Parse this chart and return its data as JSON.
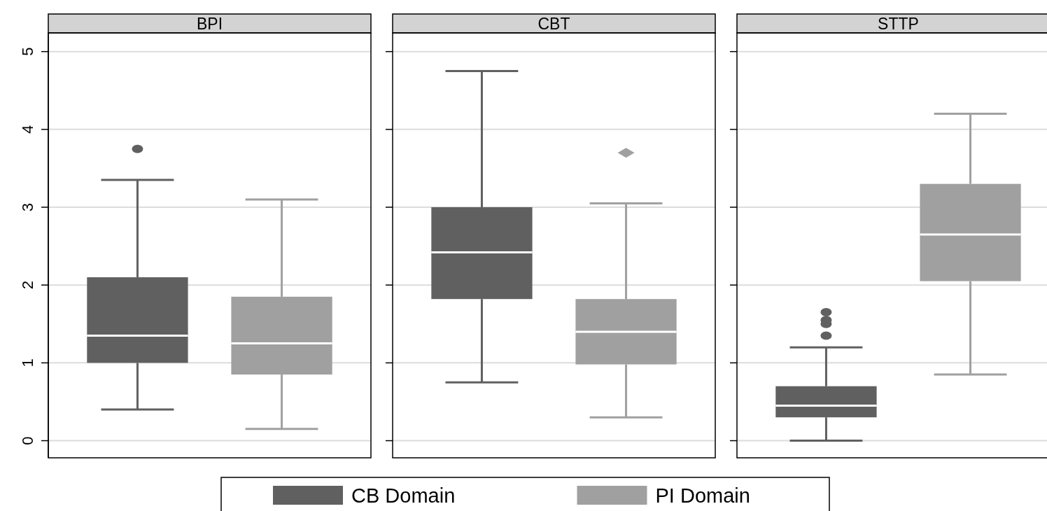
{
  "chart_data": {
    "type": "box",
    "categories": [
      "BPI",
      "CBT",
      "STTP"
    ],
    "ylim": [
      -0.22,
      5.24
    ],
    "yticks": [
      0,
      1,
      2,
      3,
      4,
      5
    ],
    "grid": "y",
    "legend": "bottom",
    "series": [
      {
        "name": "CB Domain",
        "color": "#606060",
        "marker": "circle",
        "boxes": [
          {
            "low": 0.4,
            "q1": 1.0,
            "median": 1.35,
            "q3": 2.1,
            "high": 3.35,
            "outliers": [
              3.75
            ]
          },
          {
            "low": 0.75,
            "q1": 1.82,
            "median": 2.42,
            "q3": 3.0,
            "high": 4.75
          },
          {
            "low": 0.0,
            "q1": 0.3,
            "median": 0.45,
            "q3": 0.7,
            "high": 1.2,
            "outliers": [
              1.35,
              1.5,
              1.55,
              1.65
            ]
          }
        ]
      },
      {
        "name": "PI Domain",
        "color": "#a0a0a0",
        "marker": "diamond",
        "boxes": [
          {
            "low": 0.15,
            "q1": 0.85,
            "median": 1.25,
            "q3": 1.85,
            "high": 3.1
          },
          {
            "low": 0.3,
            "q1": 0.98,
            "median": 1.4,
            "q3": 1.82,
            "high": 3.05,
            "outliers": [
              3.7
            ]
          },
          {
            "low": 0.85,
            "q1": 2.05,
            "median": 2.65,
            "q3": 3.3,
            "high": 4.2
          }
        ]
      }
    ]
  }
}
